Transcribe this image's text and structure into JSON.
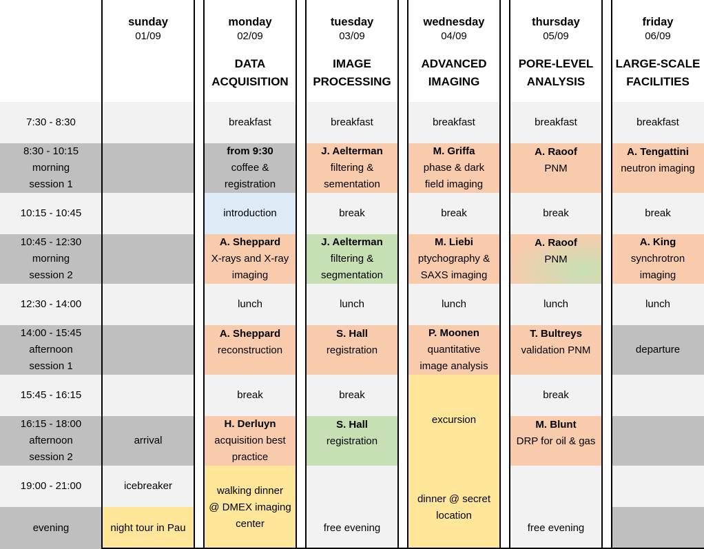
{
  "colors": {
    "light_gray": "#f2f2f2",
    "dark_gray": "#bfbfbf",
    "peach": "#f8cbad",
    "green": "#c6e0b4",
    "blue": "#ddebf7",
    "yellow": "#ffe699"
  },
  "columns": [
    {
      "day": "sunday",
      "date": "01/09",
      "theme": []
    },
    {
      "day": "monday",
      "date": "02/09",
      "theme": [
        "DATA",
        "ACQUISITION"
      ]
    },
    {
      "day": "tuesday",
      "date": "03/09",
      "theme": [
        "IMAGE",
        "PROCESSING"
      ]
    },
    {
      "day": "wednesday",
      "date": "04/09",
      "theme": [
        "ADVANCED",
        "IMAGING"
      ]
    },
    {
      "day": "thursday",
      "date": "05/09",
      "theme": [
        "PORE-LEVEL",
        "ANALYSIS"
      ]
    },
    {
      "day": "friday",
      "date": "06/09",
      "theme": [
        "LARGE-SCALE",
        "FACILITIES"
      ]
    }
  ],
  "time_slots": [
    {
      "lines": [
        "7:30 - 8:30"
      ]
    },
    {
      "lines": [
        "8:30 - 10:15",
        "morning",
        "session 1"
      ]
    },
    {
      "lines": [
        "10:15 - 10:45"
      ]
    },
    {
      "lines": [
        "10:45 - 12:30",
        "morning",
        "session 2"
      ]
    },
    {
      "lines": [
        "12:30 - 14:00"
      ]
    },
    {
      "lines": [
        "14:00 - 15:45",
        "afternoon",
        "session 1"
      ]
    },
    {
      "lines": [
        "15:45 - 16:15"
      ]
    },
    {
      "lines": [
        "16:15 - 18:00",
        "afternoon",
        "session 2"
      ]
    },
    {
      "lines": [
        "19:00 - 21:00"
      ]
    },
    {
      "lines": [
        "evening"
      ]
    }
  ],
  "events": [
    {
      "col": 1,
      "row": 7,
      "rowspan": 1,
      "bg": "dark_gray",
      "bold": "",
      "lines": [
        "arrival"
      ]
    },
    {
      "col": 1,
      "row": 8,
      "rowspan": 1,
      "bg": "light_gray",
      "bold": "",
      "lines": [
        "icebreaker"
      ]
    },
    {
      "col": 1,
      "row": 9,
      "rowspan": 1,
      "bg": "yellow",
      "bold": "",
      "lines": [
        "night tour in Pau"
      ]
    },
    {
      "col": 2,
      "row": 0,
      "rowspan": 1,
      "bg": "light_gray",
      "bold": "",
      "lines": [
        "breakfast"
      ]
    },
    {
      "col": 2,
      "row": 1,
      "rowspan": 1,
      "bg": "dark_gray",
      "bold": "from 9:30",
      "lines": [
        "coffee &",
        "registration"
      ]
    },
    {
      "col": 2,
      "row": 2,
      "rowspan": 1,
      "bg": "blue",
      "bold": "",
      "lines": [
        "introduction"
      ]
    },
    {
      "col": 2,
      "row": 3,
      "rowspan": 1,
      "bg": "peach",
      "bold": "A. Sheppard",
      "lines": [
        "X-rays and X-ray",
        "imaging"
      ]
    },
    {
      "col": 2,
      "row": 4,
      "rowspan": 1,
      "bg": "light_gray",
      "bold": "",
      "lines": [
        "lunch"
      ]
    },
    {
      "col": 2,
      "row": 5,
      "rowspan": 1,
      "bg": "peach",
      "bold": "A. Sheppard",
      "lines": [
        "reconstruction"
      ],
      "align": "top"
    },
    {
      "col": 2,
      "row": 6,
      "rowspan": 1,
      "bg": "light_gray",
      "bold": "",
      "lines": [
        "break"
      ]
    },
    {
      "col": 2,
      "row": 7,
      "rowspan": 1,
      "bg": "peach",
      "bold": "H. Derluyn",
      "lines": [
        "acquisition best",
        "practice"
      ]
    },
    {
      "col": 2,
      "row": 8,
      "rowspan": 2,
      "bg": "yellow",
      "bold": "",
      "lines": [
        "walking dinner",
        "@ DMEX imaging",
        "center"
      ]
    },
    {
      "col": 3,
      "row": 0,
      "rowspan": 1,
      "bg": "light_gray",
      "bold": "",
      "lines": [
        "breakfast"
      ]
    },
    {
      "col": 3,
      "row": 1,
      "rowspan": 1,
      "bg": "peach",
      "bold": "J. Aelterman",
      "lines": [
        "filtering &",
        "sementation"
      ]
    },
    {
      "col": 3,
      "row": 2,
      "rowspan": 1,
      "bg": "light_gray",
      "bold": "",
      "lines": [
        "break"
      ]
    },
    {
      "col": 3,
      "row": 3,
      "rowspan": 1,
      "bg": "green",
      "bold": "J. Aelterman",
      "lines": [
        "filtering &",
        "segmentation"
      ]
    },
    {
      "col": 3,
      "row": 4,
      "rowspan": 1,
      "bg": "light_gray",
      "bold": "",
      "lines": [
        "lunch"
      ]
    },
    {
      "col": 3,
      "row": 5,
      "rowspan": 1,
      "bg": "peach",
      "bold": "S. Hall",
      "lines": [
        "registration"
      ],
      "align": "top"
    },
    {
      "col": 3,
      "row": 6,
      "rowspan": 1,
      "bg": "light_gray",
      "bold": "",
      "lines": [
        "break"
      ]
    },
    {
      "col": 3,
      "row": 7,
      "rowspan": 1,
      "bg": "green",
      "bold": "S. Hall",
      "lines": [
        "registration"
      ],
      "align": "top"
    },
    {
      "col": 3,
      "row": 8,
      "rowspan": 1,
      "bg": "light_gray",
      "bold": "",
      "lines": []
    },
    {
      "col": 3,
      "row": 9,
      "rowspan": 1,
      "bg": "light_gray",
      "bold": "",
      "lines": [
        "free evening"
      ]
    },
    {
      "col": 4,
      "row": 0,
      "rowspan": 1,
      "bg": "light_gray",
      "bold": "",
      "lines": [
        "breakfast"
      ]
    },
    {
      "col": 4,
      "row": 1,
      "rowspan": 1,
      "bg": "peach",
      "bold": "M. Griffa",
      "lines": [
        "phase & dark",
        "field imaging"
      ]
    },
    {
      "col": 4,
      "row": 2,
      "rowspan": 1,
      "bg": "light_gray",
      "bold": "",
      "lines": [
        "break"
      ]
    },
    {
      "col": 4,
      "row": 3,
      "rowspan": 1,
      "bg": "peach",
      "bold": "M. Liebi",
      "lines": [
        "ptychography &",
        "SAXS imaging"
      ]
    },
    {
      "col": 4,
      "row": 4,
      "rowspan": 1,
      "bg": "light_gray",
      "bold": "",
      "lines": [
        "lunch"
      ]
    },
    {
      "col": 4,
      "row": 5,
      "rowspan": 1,
      "bg": "peach",
      "bold": "P. Moonen",
      "lines": [
        "quantitative",
        "image analysis"
      ]
    },
    {
      "col": 4,
      "row": 6,
      "rowspan": 2,
      "bg": "yellow",
      "bold": "",
      "lines": [
        "excursion"
      ]
    },
    {
      "col": 4,
      "row": 8,
      "rowspan": 2,
      "bg": "yellow",
      "bold": "",
      "lines": [
        "dinner @ secret",
        "location"
      ]
    },
    {
      "col": 5,
      "row": 0,
      "rowspan": 1,
      "bg": "light_gray",
      "bold": "",
      "lines": [
        "breakfast"
      ]
    },
    {
      "col": 5,
      "row": 1,
      "rowspan": 1,
      "bg": "peach",
      "bold": "A. Raoof",
      "lines": [
        "PNM"
      ],
      "align": "top"
    },
    {
      "col": 5,
      "row": 2,
      "rowspan": 1,
      "bg": "light_gray",
      "bold": "",
      "lines": [
        "break"
      ]
    },
    {
      "col": 5,
      "row": 3,
      "rowspan": 1,
      "bg": "peach-green",
      "bold": "A. Raoof",
      "lines": [
        "PNM"
      ],
      "align": "top"
    },
    {
      "col": 5,
      "row": 4,
      "rowspan": 1,
      "bg": "light_gray",
      "bold": "",
      "lines": [
        "lunch"
      ]
    },
    {
      "col": 5,
      "row": 5,
      "rowspan": 1,
      "bg": "peach",
      "bold": "T. Bultreys",
      "lines": [
        "validation PNM"
      ],
      "align": "top"
    },
    {
      "col": 5,
      "row": 6,
      "rowspan": 1,
      "bg": "light_gray",
      "bold": "",
      "lines": [
        "break"
      ]
    },
    {
      "col": 5,
      "row": 7,
      "rowspan": 1,
      "bg": "peach",
      "bold": "M. Blunt",
      "lines": [
        "DRP for oil & gas"
      ],
      "align": "top"
    },
    {
      "col": 5,
      "row": 8,
      "rowspan": 1,
      "bg": "light_gray",
      "bold": "",
      "lines": []
    },
    {
      "col": 5,
      "row": 9,
      "rowspan": 1,
      "bg": "light_gray",
      "bold": "",
      "lines": [
        "free evening"
      ]
    },
    {
      "col": 6,
      "row": 0,
      "rowspan": 1,
      "bg": "light_gray",
      "bold": "",
      "lines": [
        "breakfast"
      ]
    },
    {
      "col": 6,
      "row": 1,
      "rowspan": 1,
      "bg": "peach",
      "bold": "A. Tengattini",
      "lines": [
        "neutron imaging"
      ],
      "align": "top"
    },
    {
      "col": 6,
      "row": 2,
      "rowspan": 1,
      "bg": "light_gray",
      "bold": "",
      "lines": [
        "break"
      ]
    },
    {
      "col": 6,
      "row": 3,
      "rowspan": 1,
      "bg": "peach",
      "bold": "A. King",
      "lines": [
        "synchrotron",
        "imaging"
      ]
    },
    {
      "col": 6,
      "row": 4,
      "rowspan": 1,
      "bg": "light_gray",
      "bold": "",
      "lines": [
        "lunch"
      ]
    },
    {
      "col": 6,
      "row": 5,
      "rowspan": 1,
      "bg": "dark_gray",
      "bold": "",
      "lines": [
        "departure"
      ]
    },
    {
      "col": 6,
      "row": 6,
      "rowspan": 1,
      "bg": "light_gray",
      "bold": "",
      "lines": []
    },
    {
      "col": 6,
      "row": 7,
      "rowspan": 1,
      "bg": "dark_gray",
      "bold": "",
      "lines": []
    },
    {
      "col": 6,
      "row": 8,
      "rowspan": 1,
      "bg": "light_gray",
      "bold": "",
      "lines": []
    },
    {
      "col": 6,
      "row": 9,
      "rowspan": 1,
      "bg": "dark_gray",
      "bold": "",
      "lines": []
    }
  ]
}
